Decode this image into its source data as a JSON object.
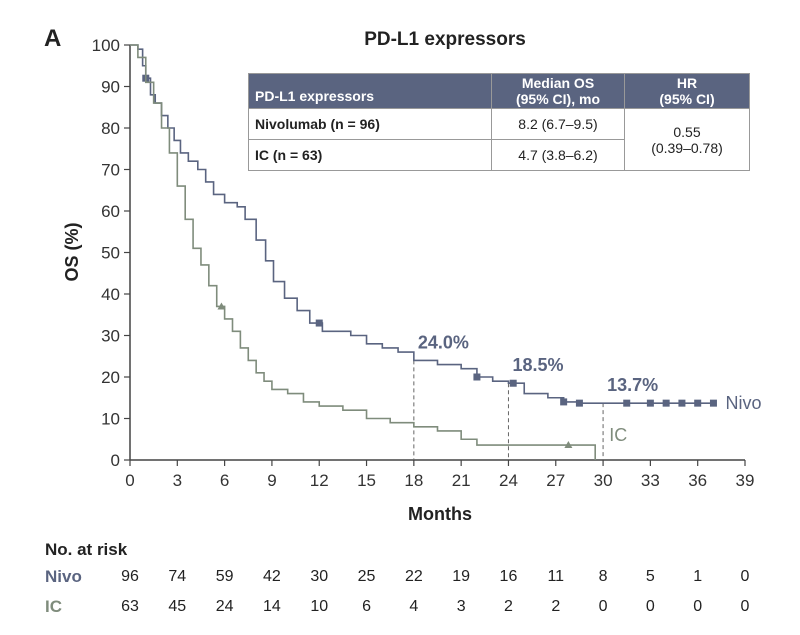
{
  "panel_label": "A",
  "chart_data": {
    "type": "line",
    "title": "PD-L1 expressors",
    "xlabel": "Months",
    "ylabel": "OS (%)",
    "xlim": [
      0,
      39
    ],
    "ylim": [
      0,
      100
    ],
    "x_ticks": [
      0,
      3,
      6,
      9,
      12,
      15,
      18,
      21,
      24,
      27,
      30,
      33,
      36,
      39
    ],
    "y_ticks": [
      0,
      10,
      20,
      30,
      40,
      50,
      60,
      70,
      80,
      90,
      100
    ],
    "series": [
      {
        "name": "Nivo",
        "color": "#5a6480",
        "points": [
          [
            0,
            100
          ],
          [
            0.5,
            99
          ],
          [
            0.8,
            95
          ],
          [
            1,
            92
          ],
          [
            1.3,
            88
          ],
          [
            1.6,
            86
          ],
          [
            2,
            83
          ],
          [
            2.4,
            80
          ],
          [
            2.8,
            77
          ],
          [
            3.2,
            74
          ],
          [
            3.7,
            72
          ],
          [
            4.3,
            70
          ],
          [
            4.8,
            67
          ],
          [
            5.3,
            64
          ],
          [
            6,
            62
          ],
          [
            6.8,
            61
          ],
          [
            7.3,
            58
          ],
          [
            8,
            53
          ],
          [
            8.6,
            48
          ],
          [
            9.1,
            43
          ],
          [
            9.8,
            39
          ],
          [
            10.6,
            36
          ],
          [
            11.4,
            33
          ],
          [
            12.2,
            31
          ],
          [
            13,
            31
          ],
          [
            14,
            30
          ],
          [
            15,
            28
          ],
          [
            16,
            27
          ],
          [
            17,
            26
          ],
          [
            18,
            24
          ],
          [
            19.5,
            23
          ],
          [
            21,
            22
          ],
          [
            22,
            20
          ],
          [
            23,
            19
          ],
          [
            24,
            18.5
          ],
          [
            25,
            16
          ],
          [
            26.5,
            15
          ],
          [
            27.5,
            14
          ],
          [
            28.5,
            13.7
          ],
          [
            37,
            13.7
          ]
        ],
        "censor_x": [
          1,
          12,
          22,
          24.3,
          27.5,
          28.5,
          31.5,
          33,
          34,
          35,
          36,
          37
        ],
        "label_text": "Nivo"
      },
      {
        "name": "IC",
        "color": "#7f8c7c",
        "points": [
          [
            0,
            100
          ],
          [
            0.5,
            97
          ],
          [
            1,
            91
          ],
          [
            1.5,
            86
          ],
          [
            2,
            80
          ],
          [
            2.5,
            74
          ],
          [
            3,
            66
          ],
          [
            3.5,
            58
          ],
          [
            4,
            51
          ],
          [
            4.5,
            47
          ],
          [
            5,
            42
          ],
          [
            5.5,
            37
          ],
          [
            6,
            34
          ],
          [
            6.5,
            31
          ],
          [
            7,
            27
          ],
          [
            7.5,
            24
          ],
          [
            8,
            21
          ],
          [
            8.5,
            19
          ],
          [
            9,
            17
          ],
          [
            10,
            16
          ],
          [
            11,
            14
          ],
          [
            12,
            13
          ],
          [
            13.5,
            12
          ],
          [
            15,
            10
          ],
          [
            16.5,
            9
          ],
          [
            18,
            8
          ],
          [
            19.5,
            7
          ],
          [
            21,
            5
          ],
          [
            22,
            3.6
          ],
          [
            24,
            3.6
          ],
          [
            28,
            3.6
          ],
          [
            29.3,
            3.6
          ],
          [
            29.5,
            0
          ]
        ],
        "censor_x": [
          5.8,
          27.8
        ],
        "label_text": "IC"
      }
    ],
    "annotations": [
      {
        "x": 18,
        "y": 24,
        "text": "24.0%"
      },
      {
        "x": 24,
        "y": 18.5,
        "text": "18.5%"
      },
      {
        "x": 30,
        "y": 13.7,
        "text": "13.7%"
      }
    ]
  },
  "table": {
    "col1_header": "PD-L1 expressors",
    "col2_header_1": "Median OS",
    "col2_header_2": "(95% CI), mo",
    "col3_header_1": "HR",
    "col3_header_2": "(95% CI)",
    "row1_label": "Nivolumab (n = 96)",
    "row1_median": "8.2 (6.7–9.5)",
    "row2_label": "IC (n = 63)",
    "row2_median": "4.7 (3.8–6.2)",
    "hr_value": "0.55",
    "hr_ci": "(0.39–0.78)"
  },
  "risk": {
    "title": "No. at risk",
    "nivo_label": "Nivo",
    "ic_label": "IC",
    "nivo": [
      "96",
      "74",
      "59",
      "42",
      "30",
      "25",
      "22",
      "19",
      "16",
      "11",
      "8",
      "5",
      "1",
      "0"
    ],
    "ic": [
      "63",
      "45",
      "24",
      "14",
      "10",
      "6",
      "4",
      "3",
      "2",
      "2",
      "0",
      "0",
      "0",
      "0"
    ]
  }
}
